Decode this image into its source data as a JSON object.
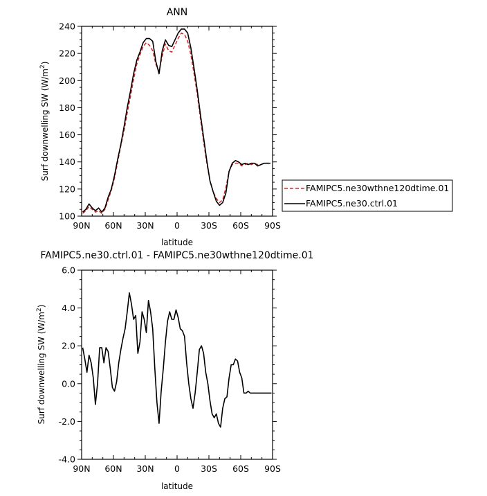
{
  "chart_data": [
    {
      "type": "line",
      "title": "ANN",
      "xlabel": "latitude",
      "ylabel": "Surf downwelling SW (W/m",
      "ylabel_sup": "2",
      "ylabel_close": ")",
      "xlim": [
        90,
        -90
      ],
      "ylim": [
        100,
        240
      ],
      "x_ticks": [
        90,
        60,
        30,
        0,
        -30,
        -60,
        -90
      ],
      "x_tick_labels": [
        "90N",
        "60N",
        "30N",
        "0",
        "30S",
        "60S",
        "90S"
      ],
      "y_ticks": [
        100,
        120,
        140,
        160,
        180,
        200,
        220,
        240
      ],
      "y_tick_labels": [
        "100",
        "120",
        "140",
        "160",
        "180",
        "200",
        "220",
        "240"
      ],
      "legend_position": "right",
      "series": [
        {
          "name": "FAMIPC5.ne30wthne120dtime.01",
          "color": "#e02020",
          "dash": "dashed",
          "x": [
            89,
            86,
            83,
            80,
            77,
            74,
            71,
            68,
            65,
            62,
            59,
            56,
            53,
            50,
            47,
            44,
            41,
            38,
            35,
            32,
            29,
            26,
            23,
            20,
            17,
            14,
            11,
            8,
            5,
            2,
            -1,
            -4,
            -7,
            -10,
            -13,
            -16,
            -19,
            -22,
            -25,
            -28,
            -31,
            -34,
            -37,
            -40,
            -43,
            -46,
            -49,
            -52,
            -55,
            -58,
            -61,
            -64,
            -67,
            -70,
            -73,
            -76,
            -79,
            -82,
            -85,
            -88
          ],
          "y": [
            102,
            104,
            107,
            105,
            103,
            104,
            102,
            105,
            112,
            119,
            128,
            140,
            152,
            163,
            176,
            188,
            201,
            212,
            219,
            225,
            228,
            226,
            222,
            212,
            207,
            218,
            227,
            222,
            221,
            226,
            231,
            235,
            234,
            229,
            219,
            205,
            190,
            172,
            155,
            139,
            126,
            118,
            113,
            110,
            112,
            121,
            133,
            138,
            139,
            139,
            137,
            138,
            139,
            138,
            139,
            138,
            138,
            139,
            139,
            139
          ]
        },
        {
          "name": "FAMIPC5.ne30.ctrl.01",
          "color": "#000000",
          "dash": "solid",
          "x": [
            89,
            86,
            83,
            80,
            77,
            74,
            71,
            68,
            65,
            62,
            59,
            56,
            53,
            50,
            47,
            44,
            41,
            38,
            35,
            32,
            29,
            26,
            23,
            20,
            17,
            14,
            11,
            8,
            5,
            2,
            -1,
            -4,
            -7,
            -10,
            -13,
            -16,
            -19,
            -22,
            -25,
            -28,
            -31,
            -34,
            -37,
            -40,
            -43,
            -46,
            -49,
            -52,
            -55,
            -58,
            -61,
            -64,
            -67,
            -70,
            -73,
            -76,
            -79,
            -82,
            -85,
            -88
          ],
          "y": [
            103,
            105,
            109,
            106,
            104,
            106,
            103,
            106,
            114,
            120,
            130,
            142,
            153,
            166,
            180,
            192,
            205,
            215,
            221,
            228,
            231,
            231,
            229,
            214,
            205,
            222,
            230,
            226,
            225,
            230,
            235,
            238,
            238,
            235,
            224,
            209,
            193,
            175,
            158,
            141,
            126,
            118,
            111,
            108,
            110,
            117,
            133,
            139,
            141,
            140,
            138,
            139,
            138,
            139,
            139,
            137,
            138,
            139,
            139,
            139
          ]
        }
      ]
    },
    {
      "type": "line",
      "title": "FAMIPC5.ne30.ctrl.01 - FAMIPC5.ne30wthne120dtime.01",
      "xlabel": "latitude",
      "ylabel": "Surf downwelling SW (W/m",
      "ylabel_sup": "2",
      "ylabel_close": ")",
      "xlim": [
        90,
        -90
      ],
      "ylim": [
        -4.0,
        6.0
      ],
      "x_ticks": [
        90,
        60,
        30,
        0,
        -30,
        -60,
        -90
      ],
      "x_tick_labels": [
        "90N",
        "60N",
        "30N",
        "0",
        "30S",
        "60S",
        "90S"
      ],
      "y_ticks": [
        -4,
        -2,
        0,
        2,
        4,
        6
      ],
      "y_tick_labels": [
        "-4.0",
        "-2.0",
        "0.0",
        "2.0",
        "4.0",
        "6.0"
      ],
      "series": [
        {
          "color": "#000000",
          "dash": "solid",
          "x": [
            89,
            87,
            85,
            83,
            81,
            79,
            77,
            75,
            73,
            71,
            69,
            67,
            65,
            63,
            61,
            59,
            57,
            55,
            53,
            51,
            49,
            47,
            45,
            43,
            41,
            39,
            37,
            35,
            33,
            31,
            29,
            27,
            25,
            23,
            21,
            19,
            17,
            15,
            13,
            11,
            9,
            7,
            5,
            3,
            1,
            -1,
            -3,
            -5,
            -7,
            -9,
            -11,
            -13,
            -15,
            -17,
            -19,
            -21,
            -23,
            -25,
            -27,
            -29,
            -31,
            -33,
            -35,
            -37,
            -39,
            -41,
            -43,
            -45,
            -47,
            -49,
            -51,
            -53,
            -55,
            -57,
            -59,
            -61,
            -63,
            -65,
            -67,
            -69,
            -71,
            -73,
            -75,
            -77,
            -79,
            -81,
            -83,
            -85,
            -87,
            -89
          ],
          "y": [
            1.9,
            1.3,
            0.6,
            1.5,
            1.1,
            0.3,
            -1.1,
            0.0,
            1.9,
            1.9,
            1.1,
            1.9,
            1.7,
            0.8,
            -0.2,
            -0.4,
            0.1,
            1.1,
            1.8,
            2.4,
            2.9,
            3.8,
            4.8,
            4.2,
            3.4,
            3.6,
            1.6,
            2.2,
            3.8,
            3.4,
            2.7,
            4.4,
            3.8,
            2.9,
            0.8,
            -1.0,
            -2.1,
            -0.4,
            0.8,
            2.2,
            3.3,
            3.8,
            3.4,
            3.4,
            3.9,
            3.5,
            2.9,
            2.8,
            2.5,
            1.1,
            0.0,
            -0.8,
            -1.3,
            -0.5,
            0.6,
            1.8,
            2.0,
            1.6,
            0.6,
            0.0,
            -0.9,
            -1.6,
            -1.8,
            -1.6,
            -2.1,
            -2.3,
            -1.3,
            -0.8,
            -0.7,
            0.3,
            1.0,
            1.0,
            1.3,
            1.2,
            0.6,
            0.3,
            -0.5,
            -0.5,
            -0.4,
            -0.5,
            -0.5,
            -0.5,
            -0.5,
            -0.5,
            -0.5,
            -0.5,
            -0.5,
            -0.5,
            -0.5,
            -0.5
          ]
        }
      ]
    }
  ]
}
